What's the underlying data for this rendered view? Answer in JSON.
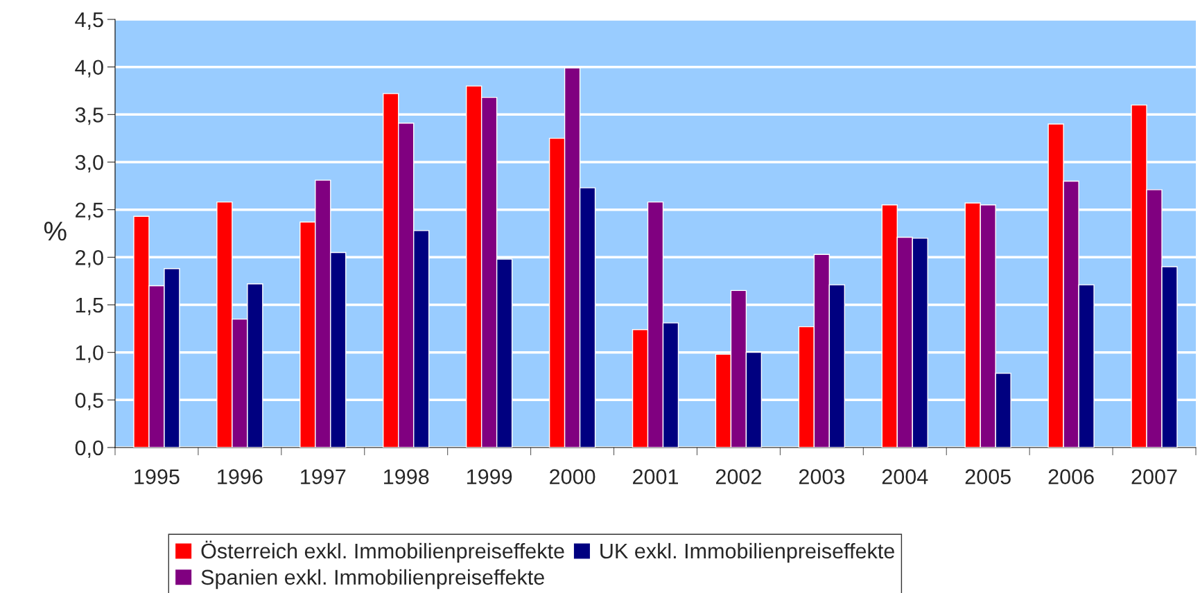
{
  "chart_data": {
    "type": "bar",
    "ylabel": "%",
    "categories": [
      "1995",
      "1996",
      "1997",
      "1998",
      "1999",
      "2000",
      "2001",
      "2002",
      "2003",
      "2004",
      "2005",
      "2006",
      "2007"
    ],
    "series": [
      {
        "name": "Österreich exkl. Immobilienpreiseffekte",
        "color": "#ff0000",
        "values": [
          2.43,
          2.58,
          2.37,
          3.72,
          3.8,
          3.25,
          1.24,
          0.98,
          1.27,
          2.55,
          2.57,
          3.4,
          3.6
        ]
      },
      {
        "name": "Spanien exkl. Immobilienpreiseffekte",
        "color": "#800080",
        "values": [
          1.7,
          1.35,
          2.81,
          3.41,
          3.68,
          3.99,
          2.58,
          1.65,
          2.03,
          2.21,
          2.55,
          2.8,
          2.71
        ]
      },
      {
        "name": "UK exkl. Immobilienpreiseffekte",
        "color": "#000080",
        "values": [
          1.88,
          1.72,
          2.05,
          2.28,
          1.98,
          2.73,
          1.31,
          1.0,
          1.71,
          2.2,
          0.78,
          1.71,
          1.9
        ]
      }
    ],
    "ylim": [
      0,
      4.5
    ],
    "yticks": [
      {
        "value": 0,
        "label": "0,0"
      },
      {
        "value": 0.5,
        "label": "0,5"
      },
      {
        "value": 1,
        "label": "1,0"
      },
      {
        "value": 1.5,
        "label": "1,5"
      },
      {
        "value": 2,
        "label": "2,0"
      },
      {
        "value": 2.5,
        "label": "2,5"
      },
      {
        "value": 3,
        "label": "3,0"
      },
      {
        "value": 3.5,
        "label": "3,5"
      },
      {
        "value": 4,
        "label": "4,0"
      },
      {
        "value": 4.5,
        "label": "4,5"
      }
    ],
    "grid": "y",
    "legend": "bottom"
  }
}
